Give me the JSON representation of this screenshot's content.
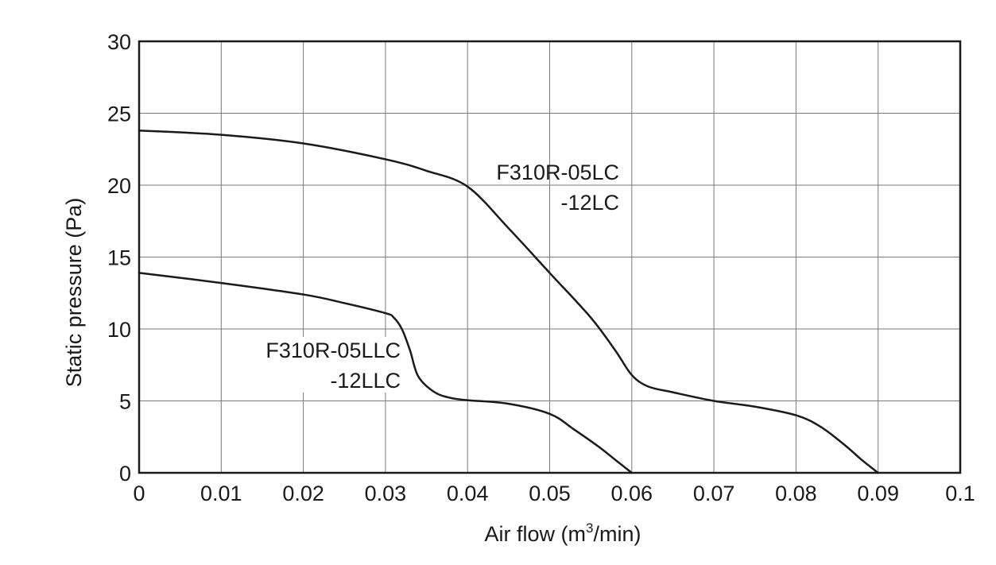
{
  "chart_data": {
    "type": "line",
    "title": "",
    "xlabel": "Air flow (m",
    "xlabel_sup": "3",
    "xlabel_suffix": "/min)",
    "ylabel": "Static pressure (Pa)",
    "xlim": [
      0,
      0.1
    ],
    "ylim": [
      0,
      30
    ],
    "x_ticks": [
      0,
      0.01,
      0.02,
      0.03,
      0.04,
      0.05,
      0.06,
      0.07,
      0.08,
      0.09,
      0.1
    ],
    "x_tick_labels": [
      "0",
      "0.01",
      "0.02",
      "0.03",
      "0.04",
      "0.05",
      "0.06",
      "0.07",
      "0.08",
      "0.09",
      "0.1"
    ],
    "y_ticks": [
      0,
      5,
      10,
      15,
      20,
      25,
      30
    ],
    "y_tick_labels": [
      "0",
      "5",
      "10",
      "15",
      "20",
      "25",
      "30"
    ],
    "grid": true,
    "series": [
      {
        "name": "F310R-05LC -12LC",
        "label_lines": [
          "F310R-05LC",
          "-12LC"
        ],
        "x": [
          0,
          0.01,
          0.02,
          0.03,
          0.035,
          0.04,
          0.045,
          0.05,
          0.055,
          0.058,
          0.06,
          0.062,
          0.065,
          0.07,
          0.075,
          0.08,
          0.083,
          0.086,
          0.088,
          0.09
        ],
        "y": [
          23.8,
          23.5,
          22.9,
          21.8,
          21.0,
          19.9,
          17.0,
          13.9,
          10.8,
          8.5,
          6.8,
          6.0,
          5.6,
          5.0,
          4.6,
          4.0,
          3.2,
          1.9,
          0.9,
          0
        ]
      },
      {
        "name": "F310R-05LLC -12LLC",
        "label_lines": [
          "F310R-05LLC",
          "-12LLC"
        ],
        "x": [
          0,
          0.01,
          0.02,
          0.025,
          0.03,
          0.031,
          0.032,
          0.033,
          0.034,
          0.036,
          0.038,
          0.04,
          0.045,
          0.05,
          0.053,
          0.056,
          0.058,
          0.06
        ],
        "y": [
          13.9,
          13.2,
          12.4,
          11.8,
          11.1,
          10.8,
          10.0,
          8.5,
          6.7,
          5.6,
          5.2,
          5.05,
          4.8,
          4.1,
          3.0,
          1.8,
          0.9,
          0
        ]
      }
    ]
  }
}
